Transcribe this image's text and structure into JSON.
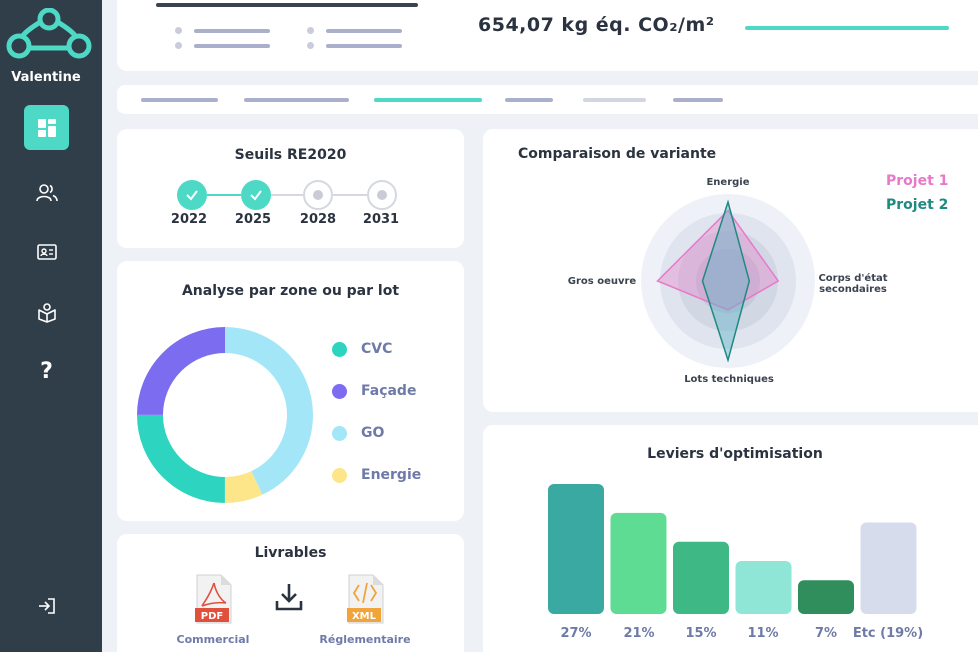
{
  "app": {
    "name": "Valentine"
  },
  "sidebar": {
    "items": [
      {
        "icon": "dashboard-icon",
        "active": true
      },
      {
        "icon": "users-icon"
      },
      {
        "icon": "id-card-icon"
      },
      {
        "icon": "book-icon"
      },
      {
        "icon": "help-icon",
        "glyph": "?"
      }
    ],
    "logout_icon": "logout-icon"
  },
  "header": {
    "total": "654,07 kg éq. CO₂/m²"
  },
  "thresholds": {
    "title": "Seuils RE2020",
    "steps": [
      {
        "year": "2022",
        "done": true
      },
      {
        "year": "2025",
        "done": true
      },
      {
        "year": "2028",
        "done": false
      },
      {
        "year": "2031",
        "done": false
      }
    ]
  },
  "analysis": {
    "title": "Analyse par zone ou par lot",
    "legend": [
      {
        "label": "CVC",
        "color": "#2dd4bf"
      },
      {
        "label": "Façade",
        "color": "#7c6cf0"
      },
      {
        "label": "GO",
        "color": "#a3e6f7"
      },
      {
        "label": "Energie",
        "color": "#fde58a"
      }
    ]
  },
  "deliverables": {
    "title": "Livrables",
    "commercial": {
      "badge": "PDF",
      "label": "Commercial"
    },
    "regulatory": {
      "badge": "XML",
      "label": "Réglementaire"
    },
    "download_icon": "download-icon"
  },
  "variants": {
    "title": "Comparaison de variante",
    "axes": {
      "top": "Energie",
      "right_line1": "Corps d'état",
      "right_line2": "secondaires",
      "bottom": "Lots techniques",
      "left": "Gros oeuvre"
    },
    "projects": [
      {
        "name": "Projet 1",
        "color": "#e879c9"
      },
      {
        "name": "Projet 2",
        "color": "#1f8a7f"
      }
    ]
  },
  "levers": {
    "title": "Leviers d'optimisation",
    "labels": [
      "27%",
      "21%",
      "15%",
      "11%",
      "7%",
      "Etc (19%)"
    ]
  },
  "chart_data": [
    {
      "type": "pie",
      "title": "Analyse par zone ou par lot",
      "categories": [
        "CVC",
        "Façade",
        "GO",
        "Energie"
      ],
      "values": [
        25,
        25,
        43,
        7
      ],
      "colors": [
        "#2dd4bf",
        "#7c6cf0",
        "#a3e6f7",
        "#fde58a"
      ]
    },
    {
      "type": "radar",
      "title": "Comparaison de variante",
      "axes": [
        "Energie",
        "Corps d'état secondaires",
        "Lots techniques",
        "Gros oeuvre"
      ],
      "series": [
        {
          "name": "Projet 1",
          "values": [
            0.83,
            0.59,
            0.34,
            0.83
          ]
        },
        {
          "name": "Projet 2",
          "values": [
            0.93,
            0.25,
            0.93,
            0.3
          ]
        }
      ]
    },
    {
      "type": "bar",
      "title": "Leviers d'optimisation",
      "categories": [
        "27%",
        "21%",
        "15%",
        "11%",
        "7%",
        "Etc (19%)"
      ],
      "values": [
        27,
        21,
        15,
        11,
        7,
        19
      ],
      "colors": [
        "#3aa9a2",
        "#5fdc94",
        "#3eb884",
        "#8fe6d6",
        "#2f8e5b",
        "#d6dcec"
      ]
    }
  ]
}
